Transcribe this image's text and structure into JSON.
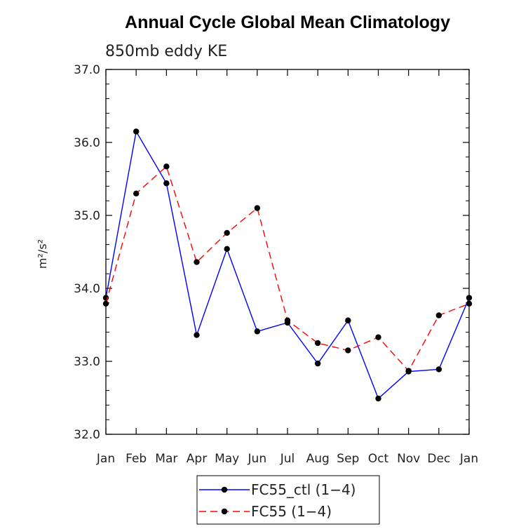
{
  "chart_data": {
    "type": "line",
    "title": "Annual Cycle Global Mean Climatology",
    "subtitle": "850mb eddy KE",
    "ylabel": "m²/s²",
    "xlabel": "",
    "categories": [
      "Jan",
      "Feb",
      "Mar",
      "Apr",
      "May",
      "Jun",
      "Jul",
      "Aug",
      "Sep",
      "Oct",
      "Nov",
      "Dec",
      "Jan"
    ],
    "ylim": [
      32.0,
      37.0
    ],
    "yticks": [
      32.0,
      33.0,
      34.0,
      35.0,
      36.0,
      37.0
    ],
    "ytick_labels": [
      "32.0",
      "33.0",
      "34.0",
      "35.0",
      "36.0",
      "37.0"
    ],
    "grid": false,
    "legend_position": "bottom",
    "series": [
      {
        "name": "FC55_ctl (1−4)",
        "color": "#0000ff",
        "dash": "solid",
        "values": [
          33.87,
          36.15,
          35.44,
          33.36,
          34.54,
          33.41,
          33.53,
          32.97,
          33.56,
          32.49,
          32.86,
          32.89,
          33.87
        ]
      },
      {
        "name": "FC55 (1−4)",
        "color": "#ff0000",
        "dash": "dashed",
        "values": [
          33.79,
          35.3,
          35.67,
          34.36,
          34.76,
          35.1,
          33.56,
          33.25,
          33.15,
          33.33,
          32.87,
          33.63,
          33.79
        ]
      }
    ]
  }
}
